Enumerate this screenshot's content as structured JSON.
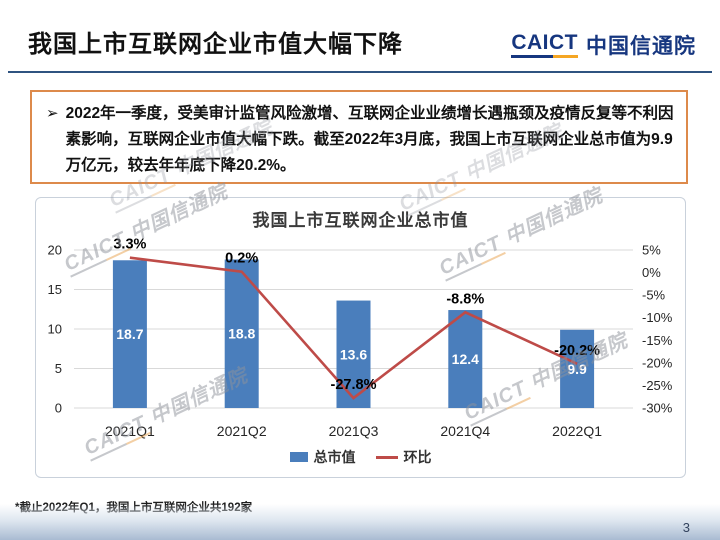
{
  "header": {
    "title": "我国上市互联网企业市值大幅下降",
    "logo": {
      "acronym": "CAICT",
      "name": "中国信通院"
    }
  },
  "callout": {
    "bullet": "➢",
    "text": "2022年一季度，受美审计监管风险激增、互联网企业业绩增长遇瓶颈及疫情反复等不利因素影响，互联网企业市值大幅下跌。截至2022年3月底，我国上市互联网企业总市值为9.9万亿元，较去年年底下降20.2%。"
  },
  "watermark": {
    "acronym": "CAICT",
    "name": "中国信通院"
  },
  "chart_data": {
    "type": "combo-bar-line",
    "title": "我国上市互联网企业总市值",
    "categories": [
      "2021Q1",
      "2021Q2",
      "2021Q3",
      "2021Q4",
      "2022Q1"
    ],
    "series": [
      {
        "name": "总市值",
        "type": "bar",
        "axis": "left",
        "color": "#4A7EBC",
        "values": [
          18.7,
          18.8,
          13.6,
          12.4,
          9.9
        ],
        "labels": [
          "18.7",
          "18.8",
          "13.6",
          "12.4",
          "9.9"
        ]
      },
      {
        "name": "环比",
        "type": "line",
        "axis": "right",
        "color": "#BE4B48",
        "values": [
          3.3,
          0.2,
          -27.8,
          -8.8,
          -20.2
        ],
        "labels": [
          "3.3%",
          "0.2%",
          "-27.8%",
          "-8.8%",
          "-20.2%"
        ]
      }
    ],
    "left_axis": {
      "min": 0,
      "max": 20,
      "ticks": [
        20,
        15,
        10,
        5,
        0
      ]
    },
    "right_axis": {
      "min": -30,
      "max": 5,
      "ticks": [
        5,
        0,
        -5,
        -10,
        -15,
        -20,
        -25,
        -30
      ],
      "suffix": "%"
    },
    "legend_position": "bottom",
    "grid": true,
    "grid_color": "#D9D9D9"
  },
  "footer": {
    "note": "*截止2022年Q1，我国上市互联网企业共192家",
    "page_number": "3"
  }
}
